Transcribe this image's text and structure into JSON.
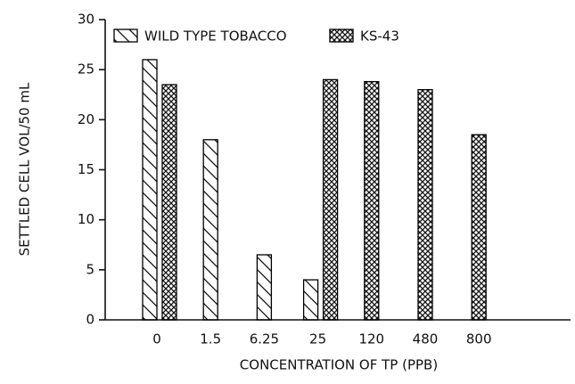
{
  "chart_data": {
    "type": "bar",
    "x_label": "CONCENTRATION OF TP (PPB)",
    "y_label": "SETTLED CELL VOL/50 mL",
    "categories": [
      "0",
      "1.5",
      "6.25",
      "25",
      "120",
      "480",
      "800"
    ],
    "series": [
      {
        "name": "WILD TYPE TOBACCO",
        "color": "#000000",
        "pattern": "diagonal",
        "values": [
          26,
          18,
          6.5,
          4,
          null,
          null,
          null
        ]
      },
      {
        "name": "KS-43",
        "color": "#000000",
        "pattern": "crosshatch",
        "values": [
          23.5,
          null,
          null,
          24,
          23.8,
          23,
          18.5
        ]
      }
    ],
    "ylim": [
      0,
      30
    ],
    "yticks": [
      0,
      5,
      10,
      15,
      20,
      25,
      30
    ],
    "legend": "top-left",
    "grid": false
  }
}
